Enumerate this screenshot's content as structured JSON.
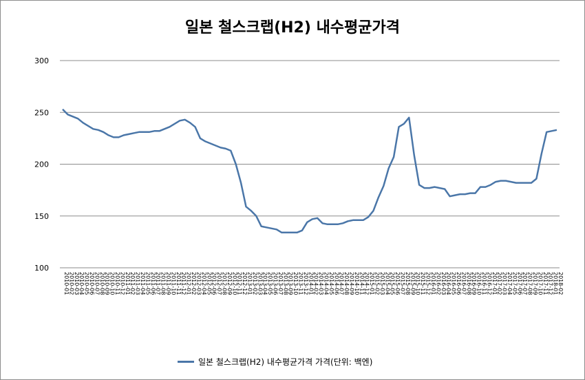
{
  "chart_data": {
    "type": "line",
    "title": "일본 철스크랩(H2) 내수평균가격",
    "xlabel": "",
    "ylabel": "",
    "ylim": [
      100,
      300
    ],
    "yticks": [
      100,
      150,
      200,
      250,
      300
    ],
    "grid": true,
    "legend_position": "bottom",
    "x_start_label": "2010-01",
    "x_end_label": "2019-11",
    "series": [
      {
        "name": "일본 철스크랩(H2) 내수평균가격 가격(단위: 백엔)",
        "color": "#4a76a8",
        "values": [
          253,
          248,
          246,
          244,
          240,
          237,
          234,
          233,
          231,
          228,
          226,
          226,
          228,
          229,
          230,
          231,
          231,
          231,
          232,
          232,
          234,
          236,
          239,
          242,
          243,
          240,
          236,
          225,
          222,
          220,
          218,
          216,
          215,
          213,
          200,
          182,
          159,
          155,
          150,
          140,
          139,
          138,
          137,
          134,
          134,
          134,
          134,
          136,
          144,
          147,
          148,
          143,
          142,
          142,
          142,
          143,
          145,
          146,
          146,
          146,
          149,
          155,
          168,
          179,
          196,
          207,
          236,
          239,
          245,
          209,
          180,
          177,
          177,
          178,
          177,
          176,
          169,
          170,
          171,
          171,
          172,
          172,
          178,
          178,
          180,
          183,
          184,
          184,
          183,
          182,
          182,
          182,
          182,
          186,
          210,
          231,
          232,
          233
        ]
      }
    ]
  }
}
